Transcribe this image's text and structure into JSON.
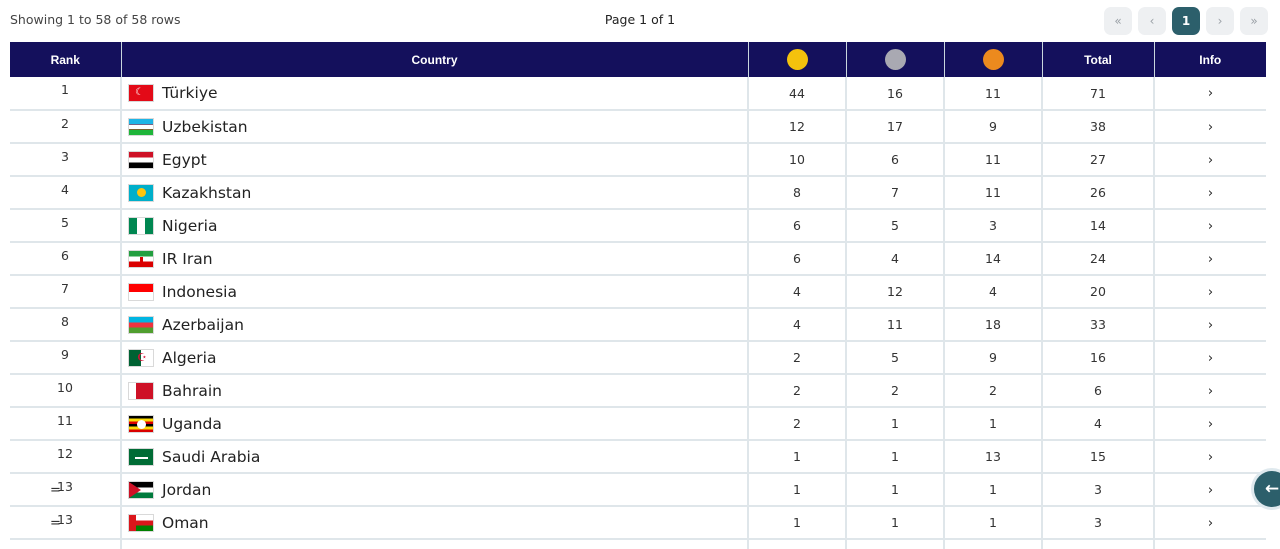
{
  "status": {
    "showing": "Showing 1 to 58 of 58 rows",
    "page": "Page 1 of 1"
  },
  "pager": {
    "first": "«",
    "prev": "‹",
    "current": "1",
    "next": "›",
    "last": "»"
  },
  "columns": {
    "rank": "Rank",
    "country": "Country",
    "total": "Total",
    "info": "Info"
  },
  "medal_colors": {
    "gold": "#f4c20d",
    "silver": "#a9a9b2",
    "bronze": "#ec8a1e"
  },
  "info_icon": "chevron-right-icon",
  "back_icon": "arrow-left-icon",
  "rows": [
    {
      "rank": "1",
      "tie": "",
      "country": "Türkiye",
      "gold": "44",
      "silver": "16",
      "bronze": "11",
      "total": "71",
      "info": "›"
    },
    {
      "rank": "2",
      "tie": "",
      "country": "Uzbekistan",
      "gold": "12",
      "silver": "17",
      "bronze": "9",
      "total": "38",
      "info": "›"
    },
    {
      "rank": "3",
      "tie": "",
      "country": "Egypt",
      "gold": "10",
      "silver": "6",
      "bronze": "11",
      "total": "27",
      "info": "›"
    },
    {
      "rank": "4",
      "tie": "",
      "country": "Kazakhstan",
      "gold": "8",
      "silver": "7",
      "bronze": "11",
      "total": "26",
      "info": "›"
    },
    {
      "rank": "5",
      "tie": "",
      "country": "Nigeria",
      "gold": "6",
      "silver": "5",
      "bronze": "3",
      "total": "14",
      "info": "›"
    },
    {
      "rank": "6",
      "tie": "",
      "country": "IR Iran",
      "gold": "6",
      "silver": "4",
      "bronze": "14",
      "total": "24",
      "info": "›"
    },
    {
      "rank": "7",
      "tie": "",
      "country": "Indonesia",
      "gold": "4",
      "silver": "12",
      "bronze": "4",
      "total": "20",
      "info": "›"
    },
    {
      "rank": "8",
      "tie": "",
      "country": "Azerbaijan",
      "gold": "4",
      "silver": "11",
      "bronze": "18",
      "total": "33",
      "info": "›"
    },
    {
      "rank": "9",
      "tie": "",
      "country": "Algeria",
      "gold": "2",
      "silver": "5",
      "bronze": "9",
      "total": "16",
      "info": "›"
    },
    {
      "rank": "10",
      "tie": "",
      "country": "Bahrain",
      "gold": "2",
      "silver": "2",
      "bronze": "2",
      "total": "6",
      "info": "›"
    },
    {
      "rank": "11",
      "tie": "",
      "country": "Uganda",
      "gold": "2",
      "silver": "1",
      "bronze": "1",
      "total": "4",
      "info": "›"
    },
    {
      "rank": "12",
      "tie": "",
      "country": "Saudi Arabia",
      "gold": "1",
      "silver": "1",
      "bronze": "13",
      "total": "15",
      "info": "›"
    },
    {
      "rank": "13",
      "tie": "=",
      "country": "Jordan",
      "gold": "1",
      "silver": "1",
      "bronze": "1",
      "total": "3",
      "info": "›"
    },
    {
      "rank": "13",
      "tie": "=",
      "country": "Oman",
      "gold": "1",
      "silver": "1",
      "bronze": "1",
      "total": "3",
      "info": "›"
    },
    {
      "rank": "",
      "tie": "",
      "country": "",
      "gold": "",
      "silver": "",
      "bronze": "",
      "total": "",
      "info": ""
    }
  ]
}
